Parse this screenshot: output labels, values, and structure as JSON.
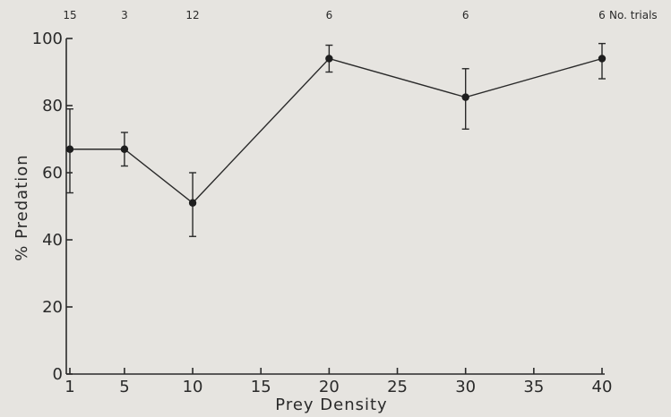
{
  "chart_data": {
    "type": "line",
    "title": "",
    "xlabel": "Prey Density",
    "ylabel": "% Predation",
    "xlim": [
      0,
      40
    ],
    "ylim": [
      0,
      100
    ],
    "x_ticks": [
      1,
      5,
      10,
      15,
      20,
      25,
      30,
      35,
      40
    ],
    "y_ticks": [
      0,
      20,
      40,
      60,
      80,
      100
    ],
    "grid": false,
    "series": [
      {
        "x": [
          1,
          5,
          10,
          20,
          30,
          40
        ],
        "y": [
          67,
          67,
          51,
          94,
          82.5,
          94
        ],
        "err_low": [
          54,
          62,
          41,
          90,
          73,
          88
        ],
        "err_high": [
          79,
          72,
          60,
          98,
          91,
          98.5
        ]
      }
    ],
    "trials_label": "No. trials",
    "trials": [
      {
        "x": 1,
        "n": "15"
      },
      {
        "x": 5,
        "n": "3"
      },
      {
        "x": 10,
        "n": "12"
      },
      {
        "x": 20,
        "n": "6"
      },
      {
        "x": 30,
        "n": "6"
      },
      {
        "x": 40,
        "n": "6"
      }
    ]
  }
}
